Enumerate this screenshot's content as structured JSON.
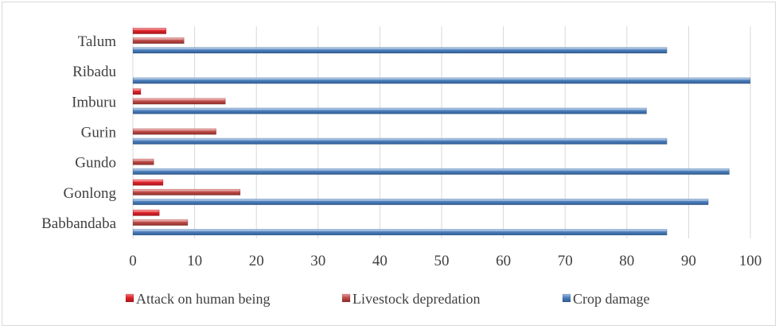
{
  "chart_data": {
    "type": "bar",
    "orientation": "horizontal",
    "categories": [
      "Babbandaba",
      "Gonlong",
      "Gundo",
      "Gurin",
      "Imburu",
      "Ribadu",
      "Talum"
    ],
    "series": [
      {
        "name": "Attack on human being",
        "values": [
          4.3,
          4.9,
          0,
          0,
          1.3,
          0,
          5.4
        ],
        "color": "#e0232b"
      },
      {
        "name": "Livestock depredation",
        "values": [
          8.9,
          17.4,
          3.4,
          13.5,
          15.0,
          0,
          8.3
        ],
        "color": "#c0504d"
      },
      {
        "name": "Crop damage",
        "values": [
          86.5,
          93.2,
          96.6,
          86.5,
          83.2,
          100,
          86.5
        ],
        "color": "#4f81bd"
      }
    ],
    "xlim": [
      0,
      100
    ],
    "xticks": [
      0,
      10,
      20,
      30,
      40,
      50,
      60,
      70,
      80,
      90,
      100
    ],
    "grid": true,
    "legend": "bottom",
    "title": "",
    "xlabel": "",
    "ylabel": ""
  }
}
